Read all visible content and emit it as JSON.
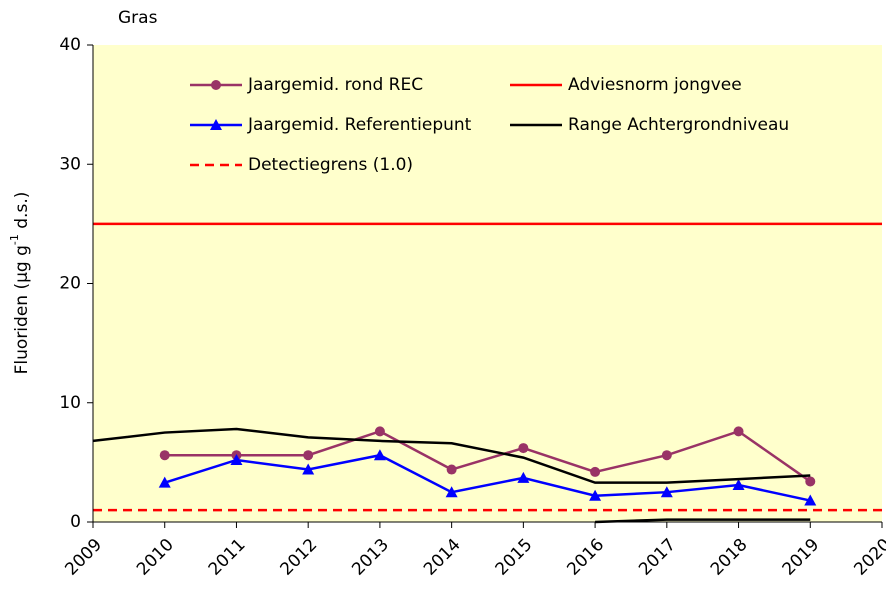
{
  "chart_data": {
    "type": "line",
    "title": "Gras",
    "y_label": [
      "Fluoriden  (µg g",
      "-1",
      " d.s.)"
    ],
    "x": [
      2009,
      2010,
      2011,
      2012,
      2013,
      2014,
      2015,
      2016,
      2017,
      2018,
      2019
    ],
    "xlim": [
      2009,
      2020
    ],
    "xticks": [
      2009,
      2010,
      2011,
      2012,
      2013,
      2014,
      2015,
      2016,
      2017,
      2018,
      2019,
      2020
    ],
    "ylim": [
      0,
      40
    ],
    "yticks": [
      0,
      10,
      20,
      30,
      40
    ],
    "background": "#ffffcc",
    "series": [
      {
        "name": "Jaargemid. rond REC",
        "color": "#993366",
        "marker": "circle",
        "values": [
          null,
          5.6,
          5.6,
          5.6,
          7.6,
          4.4,
          6.2,
          4.2,
          5.6,
          7.6,
          3.4
        ]
      },
      {
        "name": "Jaargemid. Referentiepunt",
        "color": "#0000ff",
        "marker": "triangle",
        "values": [
          null,
          3.3,
          5.2,
          4.4,
          5.6,
          2.5,
          3.7,
          2.2,
          2.5,
          3.1,
          1.8
        ]
      },
      {
        "name": "Range Achtergrondniveau",
        "color": "#000000",
        "values": [
          6.8,
          7.5,
          7.8,
          7.1,
          6.8,
          6.6,
          5.4,
          3.3,
          3.3,
          3.6,
          3.9
        ],
        "low": [
          null,
          null,
          null,
          null,
          null,
          null,
          null,
          0,
          0.2,
          0.2,
          0.2
        ]
      }
    ],
    "hlines": [
      {
        "name": "Adviesnorm jongvee",
        "value": 25,
        "color": "#ff0000",
        "dashed": false
      },
      {
        "name": "Detectiegrens (1.0)",
        "value": 1,
        "color": "#ff0000",
        "dashed": true
      }
    ]
  }
}
